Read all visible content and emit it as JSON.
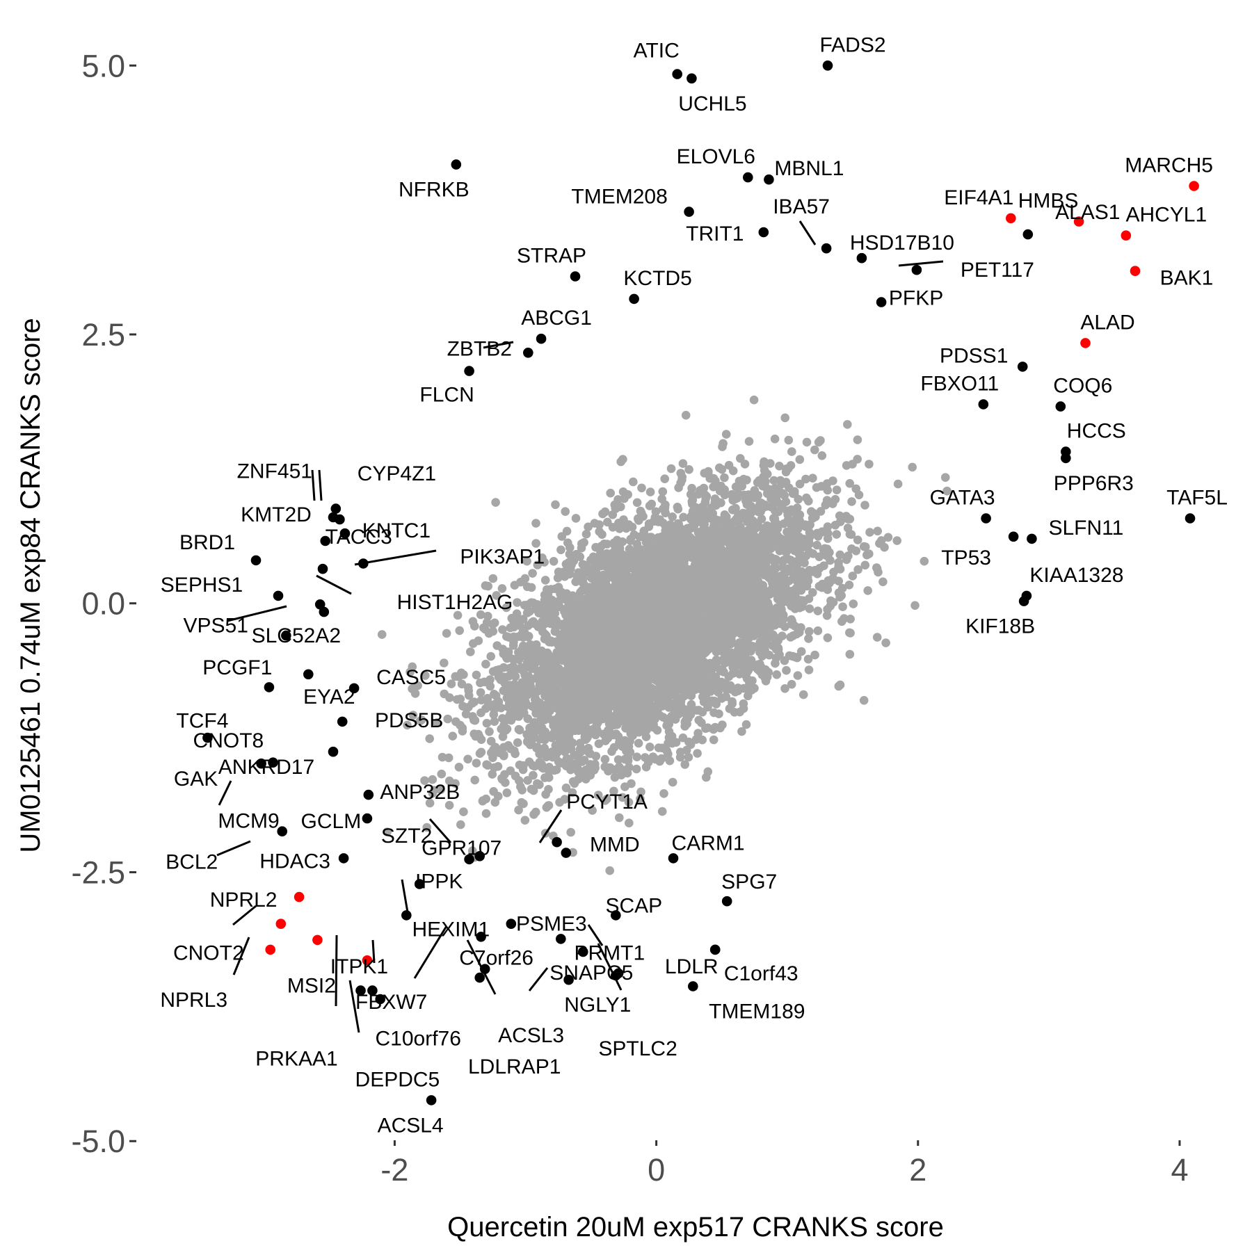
{
  "chart_data": {
    "type": "scatter",
    "xlabel": "Quercetin 20uM exp517 CRANKS score",
    "ylabel": "UM0125461 0.74uM exp84 CRANKS score",
    "xlim": [
      -3.98,
      4.5
    ],
    "ylim": [
      -5.38,
      5.48
    ],
    "x_ticks": [
      -2,
      0,
      2,
      4
    ],
    "x_tick_labels": [
      "-2",
      "0",
      "2",
      "4"
    ],
    "y_ticks": [
      -5,
      -2.5,
      0,
      2.5,
      5
    ],
    "y_tick_labels": [
      "-5.0",
      "-2.5",
      "0.0",
      "2.5",
      "5.0"
    ],
    "grid": false,
    "legend": "none",
    "colors": {
      "background_points": "#a6a6a6",
      "highlight_points": "#000000",
      "red_points": "#ff0000",
      "tick_labels": "#4d4d4d"
    },
    "background_cloud": {
      "color": "#a6a6a6",
      "center": [
        0.0,
        -0.4
      ],
      "approx_x_range": [
        -2.1,
        2.6
      ],
      "approx_y_range": [
        -2.9,
        2.5
      ]
    },
    "labeled_points": [
      {
        "gene": "ATIC",
        "x": 0.16,
        "y": 4.92,
        "color": "#000000"
      },
      {
        "gene": "UCHL5",
        "x": 0.27,
        "y": 4.88,
        "color": "#000000"
      },
      {
        "gene": "FADS2",
        "x": 1.31,
        "y": 5.0,
        "color": "#000000"
      },
      {
        "gene": "NFRKB",
        "x": -1.53,
        "y": 4.08,
        "color": "#000000"
      },
      {
        "gene": "ELOVL6",
        "x": 0.7,
        "y": 3.96,
        "color": "#000000"
      },
      {
        "gene": "MBNL1",
        "x": 0.86,
        "y": 3.94,
        "color": "#000000"
      },
      {
        "gene": "TMEM208",
        "x": 0.25,
        "y": 3.64,
        "color": "#000000"
      },
      {
        "gene": "IBA57",
        "x": 1.3,
        "y": 3.3,
        "color": "#000000"
      },
      {
        "gene": "TRIT1",
        "x": 0.82,
        "y": 3.45,
        "color": "#000000"
      },
      {
        "gene": "HSD17B10",
        "x": 1.57,
        "y": 3.21,
        "color": "#000000"
      },
      {
        "gene": "PET117",
        "x": 1.99,
        "y": 3.1,
        "color": "#000000"
      },
      {
        "gene": "EIF4A1",
        "x": 2.71,
        "y": 3.58,
        "color": "#ff0000"
      },
      {
        "gene": "HMBS",
        "x": 3.23,
        "y": 3.55,
        "color": "#ff0000"
      },
      {
        "gene": "MARCH5",
        "x": 4.11,
        "y": 3.88,
        "color": "#ff0000"
      },
      {
        "gene": "AHCYL1",
        "x": 3.59,
        "y": 3.42,
        "color": "#ff0000"
      },
      {
        "gene": "ALAS1",
        "x": 2.84,
        "y": 3.43,
        "color": "#000000"
      },
      {
        "gene": "BAK1",
        "x": 3.66,
        "y": 3.09,
        "color": "#ff0000"
      },
      {
        "gene": "STRAP",
        "x": -0.62,
        "y": 3.04,
        "color": "#000000"
      },
      {
        "gene": "KCTD5",
        "x": -0.17,
        "y": 2.83,
        "color": "#000000"
      },
      {
        "gene": "PFKP",
        "x": 1.72,
        "y": 2.8,
        "color": "#000000"
      },
      {
        "gene": "ABCG1",
        "x": -0.88,
        "y": 2.46,
        "color": "#000000"
      },
      {
        "gene": "ZBTB2",
        "x": -0.98,
        "y": 2.33,
        "color": "#000000"
      },
      {
        "gene": "ALAD",
        "x": 3.28,
        "y": 2.42,
        "color": "#ff0000"
      },
      {
        "gene": "PDSS1",
        "x": 2.8,
        "y": 2.2,
        "color": "#000000"
      },
      {
        "gene": "FLCN",
        "x": -1.43,
        "y": 2.16,
        "color": "#000000"
      },
      {
        "gene": "FBXO11",
        "x": 2.5,
        "y": 1.85,
        "color": "#000000"
      },
      {
        "gene": "COQ6",
        "x": 3.09,
        "y": 1.83,
        "color": "#000000"
      },
      {
        "gene": "HCCS",
        "x": 3.13,
        "y": 1.41,
        "color": "#000000"
      },
      {
        "gene": "PPP6R3",
        "x": 3.13,
        "y": 1.35,
        "color": "#000000"
      },
      {
        "gene": "TAF5L",
        "x": 4.08,
        "y": 0.79,
        "color": "#000000"
      },
      {
        "gene": "GATA3",
        "x": 2.52,
        "y": 0.79,
        "color": "#000000"
      },
      {
        "gene": "SLFN11",
        "x": 2.87,
        "y": 0.6,
        "color": "#000000"
      },
      {
        "gene": "TP53",
        "x": 2.73,
        "y": 0.62,
        "color": "#000000"
      },
      {
        "gene": "KIAA1328",
        "x": 2.83,
        "y": 0.07,
        "color": "#000000"
      },
      {
        "gene": "KIF18B",
        "x": 2.81,
        "y": 0.02,
        "color": "#000000"
      },
      {
        "gene": "ZNF451",
        "x": -2.45,
        "y": 0.88,
        "color": "#000000"
      },
      {
        "gene": "CYP4Z1",
        "x": -2.42,
        "y": 0.78,
        "color": "#000000"
      },
      {
        "gene": "KMT2D",
        "x": -2.47,
        "y": 0.8,
        "color": "#000000"
      },
      {
        "gene": "KNTC1",
        "x": -2.38,
        "y": 0.65,
        "color": "#000000"
      },
      {
        "gene": "BRD1",
        "x": -3.06,
        "y": 0.4,
        "color": "#000000"
      },
      {
        "gene": "TACC3",
        "x": -2.53,
        "y": 0.58,
        "color": "#000000"
      },
      {
        "gene": "PIK3AP1",
        "x": -2.24,
        "y": 0.37,
        "color": "#000000"
      },
      {
        "gene": "HIST1H2AG",
        "x": -2.55,
        "y": 0.32,
        "color": "#000000"
      },
      {
        "gene": "SEPHS1",
        "x": -2.89,
        "y": 0.07,
        "color": "#000000"
      },
      {
        "gene": "VPS51",
        "x": -2.57,
        "y": -0.01,
        "color": "#000000"
      },
      {
        "gene": "SLC52A2",
        "x": -2.54,
        "y": -0.08,
        "color": "#000000"
      },
      {
        "gene": "PCGF1",
        "x": -2.83,
        "y": -0.3,
        "color": "#000000"
      },
      {
        "gene": "TCF4",
        "x": -2.96,
        "y": -0.78,
        "color": "#000000"
      },
      {
        "gene": "EYA2",
        "x": -2.66,
        "y": -0.66,
        "color": "#000000"
      },
      {
        "gene": "CASC5",
        "x": -2.31,
        "y": -0.79,
        "color": "#000000"
      },
      {
        "gene": "CNOT8",
        "x": -3.43,
        "y": -1.25,
        "color": "#000000"
      },
      {
        "gene": "PDS5B",
        "x": -2.4,
        "y": -1.1,
        "color": "#000000"
      },
      {
        "gene": "GAK",
        "x": -3.02,
        "y": -1.49,
        "color": "#000000"
      },
      {
        "gene": "ANKRD17",
        "x": -2.47,
        "y": -1.38,
        "color": "#000000"
      },
      {
        "gene": "ANP32B",
        "x": -2.2,
        "y": -1.78,
        "color": "#000000"
      },
      {
        "gene": "MCM9",
        "x": -2.93,
        "y": -1.48,
        "color": "#000000"
      },
      {
        "gene": "GCLM",
        "x": -2.21,
        "y": -2.0,
        "color": "#000000"
      },
      {
        "gene": "SZT2",
        "x": -1.43,
        "y": -2.38,
        "color": "#000000"
      },
      {
        "gene": "PCYT1A",
        "x": -0.76,
        "y": -2.22,
        "color": "#000000"
      },
      {
        "gene": "BCL2",
        "x": -2.86,
        "y": -2.12,
        "color": "#000000"
      },
      {
        "gene": "HDAC3",
        "x": -2.39,
        "y": -2.37,
        "color": "#000000"
      },
      {
        "gene": "GPR107",
        "x": -1.35,
        "y": -2.35,
        "color": "#000000"
      },
      {
        "gene": "MMD",
        "x": -0.69,
        "y": -2.32,
        "color": "#000000"
      },
      {
        "gene": "CARM1",
        "x": 0.13,
        "y": -2.37,
        "color": "#000000"
      },
      {
        "gene": "IPPK",
        "x": -1.81,
        "y": -2.61,
        "color": "#000000"
      },
      {
        "gene": "SPG7",
        "x": 0.54,
        "y": -2.77,
        "color": "#000000"
      },
      {
        "gene": "NPRL2",
        "x": -2.73,
        "y": -2.73,
        "color": "#ff0000"
      },
      {
        "gene": "ITPK1",
        "x": -2.59,
        "y": -3.13,
        "color": "#ff0000"
      },
      {
        "gene": "PSME3",
        "x": -1.11,
        "y": -2.98,
        "color": "#000000"
      },
      {
        "gene": "SCAP",
        "x": -0.31,
        "y": -2.9,
        "color": "#000000"
      },
      {
        "gene": "CNOT2",
        "x": -2.87,
        "y": -2.98,
        "color": "#ff0000"
      },
      {
        "gene": "HEXIM1",
        "x": -1.91,
        "y": -2.9,
        "color": "#000000"
      },
      {
        "gene": "C7orf26",
        "x": -1.34,
        "y": -3.1,
        "color": "#000000"
      },
      {
        "gene": "PRMT1",
        "x": -0.73,
        "y": -3.12,
        "color": "#000000"
      },
      {
        "gene": "SNAPC5",
        "x": -0.56,
        "y": -3.24,
        "color": "#000000"
      },
      {
        "gene": "LDLR",
        "x": 0.45,
        "y": -3.22,
        "color": "#000000"
      },
      {
        "gene": "C1orf43",
        "x": 0.45,
        "y": -3.22,
        "color": "#000000"
      },
      {
        "gene": "NPRL3",
        "x": -2.95,
        "y": -3.22,
        "color": "#ff0000"
      },
      {
        "gene": "MSI2",
        "x": -2.21,
        "y": -3.32,
        "color": "#ff0000"
      },
      {
        "gene": "FBXW7",
        "x": -2.11,
        "y": -3.68,
        "color": "#000000"
      },
      {
        "gene": "NGLY1",
        "x": -0.31,
        "y": -3.46,
        "color": "#000000"
      },
      {
        "gene": "TMEM189",
        "x": 0.28,
        "y": -3.56,
        "color": "#000000"
      },
      {
        "gene": "C10orf76",
        "x": -1.31,
        "y": -3.4,
        "color": "#000000"
      },
      {
        "gene": "ACSL3",
        "x": -0.67,
        "y": -3.5,
        "color": "#000000"
      },
      {
        "gene": "SPTLC2",
        "x": -0.29,
        "y": -3.44,
        "color": "#000000"
      },
      {
        "gene": "PRKAA1",
        "x": -2.26,
        "y": -3.6,
        "color": "#000000"
      },
      {
        "gene": "LDLRAP1",
        "x": -1.35,
        "y": -3.48,
        "color": "#000000"
      },
      {
        "gene": "DEPDC5",
        "x": -2.17,
        "y": -3.6,
        "color": "#000000"
      },
      {
        "gene": "ACSL4",
        "x": -1.72,
        "y": -4.62,
        "color": "#000000"
      }
    ]
  }
}
